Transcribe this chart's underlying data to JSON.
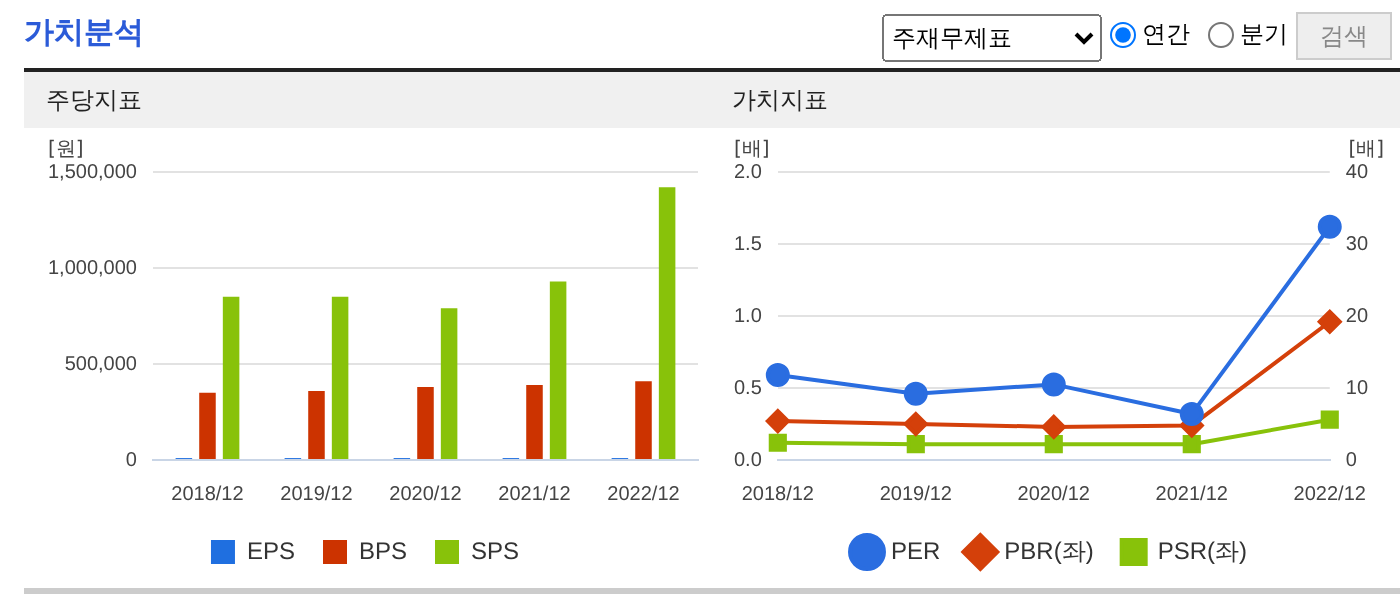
{
  "chart_data": [
    {
      "type": "bar",
      "title": "주당지표",
      "ylabel": "[원]",
      "annotations": [
        "가치분석",
        "주재무제표",
        "연간",
        "분기",
        "검색"
      ],
      "categories": [
        "2018/12",
        "2019/12",
        "2020/12",
        "2021/12",
        "2022/12"
      ],
      "series": [
        {
          "name": "EPS",
          "color": "#1f6fe0",
          "values": [
            10000,
            10000,
            10000,
            10000,
            10000
          ]
        },
        {
          "name": "BPS",
          "color": "#cc3300",
          "values": [
            350000,
            360000,
            380000,
            390000,
            410000
          ]
        },
        {
          "name": "SPS",
          "color": "#88c20a",
          "values": [
            850000,
            850000,
            790000,
            930000,
            1420000
          ]
        }
      ],
      "ylim": [
        0,
        1500000
      ],
      "yticks": [
        {
          "value": 0,
          "label": "0"
        },
        {
          "value": 500000,
          "label": "500,000"
        },
        {
          "value": 1000000,
          "label": "1,000,000"
        },
        {
          "value": 1500000,
          "label": "1,500,000"
        }
      ],
      "grid": "y",
      "legend": "bottom"
    },
    {
      "type": "line",
      "title": "가치지표",
      "ylabel": "[배]",
      "y2label": "[배]",
      "categories": [
        "2018/12",
        "2019/12",
        "2020/12",
        "2021/12",
        "2022/12"
      ],
      "series": [
        {
          "name": "PER",
          "color": "#2a6de0",
          "axis": "y2",
          "marker": "circle",
          "values": [
            11.8,
            9.2,
            10.5,
            6.4,
            32.4
          ]
        },
        {
          "name": "PBR(좌)",
          "color": "#d4400a",
          "marker": "diamond",
          "values": [
            0.27,
            0.25,
            0.23,
            0.24,
            0.96
          ]
        },
        {
          "name": "PSR(좌)",
          "color": "#88c20a",
          "marker": "square",
          "values": [
            0.12,
            0.11,
            0.11,
            0.11,
            0.28
          ]
        }
      ],
      "ylim": [
        0,
        2
      ],
      "yticks": [
        {
          "value": 0,
          "label": "0.0"
        },
        {
          "value": 0.5,
          "label": "0.5"
        },
        {
          "value": 1,
          "label": "1.0"
        },
        {
          "value": 1.5,
          "label": "1.5"
        },
        {
          "value": 2,
          "label": "2.0"
        }
      ],
      "y2lim": [
        0,
        40
      ],
      "y2ticks": [
        0,
        10,
        20,
        30,
        40
      ],
      "grid": "y",
      "legend": "bottom"
    }
  ]
}
